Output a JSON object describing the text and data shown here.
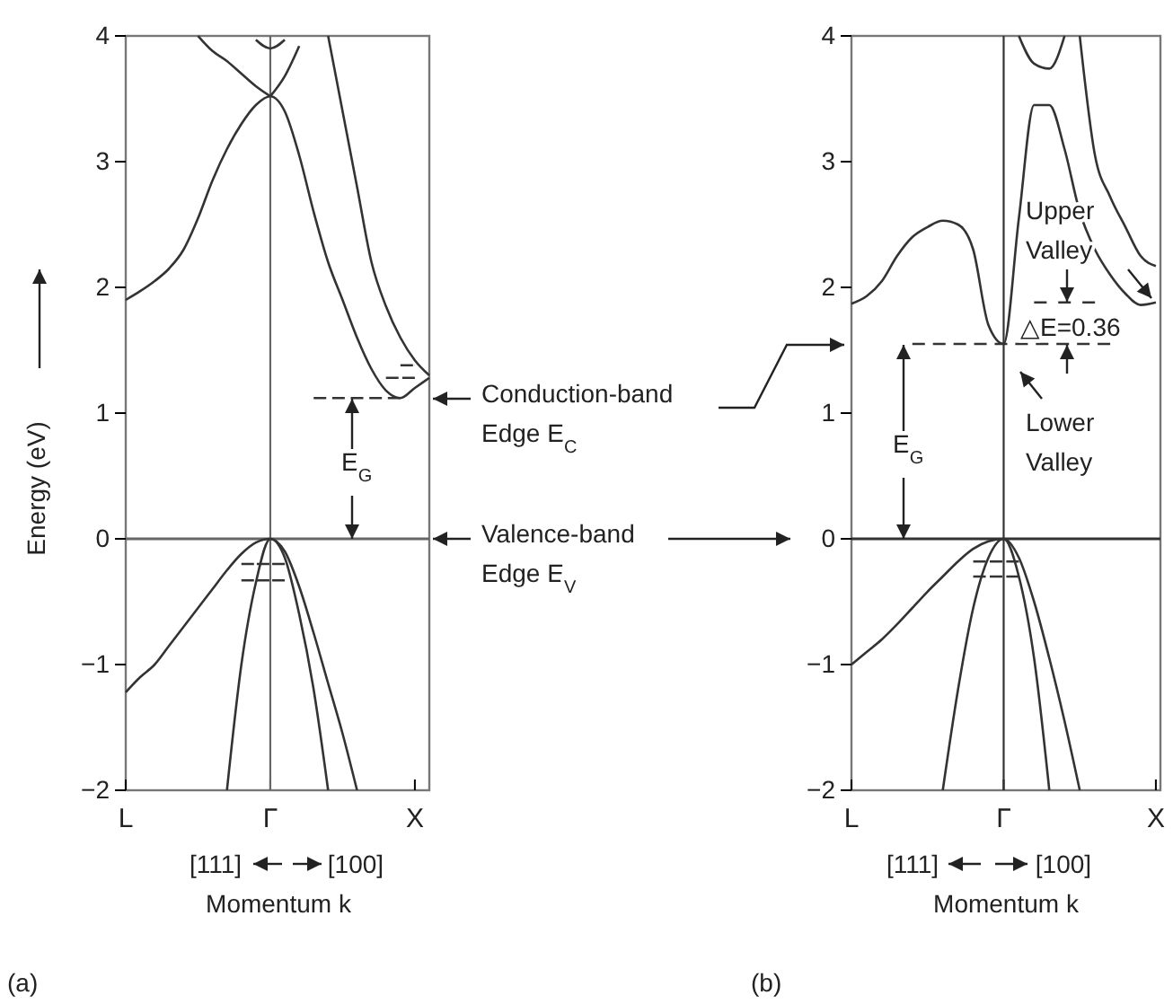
{
  "chart_data": [
    {
      "type": "line",
      "xlabel": "Momentum k",
      "ylabel": "Energy (eV)",
      "ylim": [
        -2,
        4
      ],
      "yticks": [
        -2,
        -1,
        0,
        1,
        2,
        3,
        4
      ],
      "categories": [
        "L",
        null,
        null,
        null,
        null,
        null,
        null,
        null,
        null,
        null,
        "Γ",
        null,
        null,
        null,
        null,
        null,
        null,
        null,
        null,
        null,
        "X",
        null
      ],
      "line_style": "solid",
      "ref_lines": [
        {
          "axis": "y",
          "value": 0,
          "color": "#666666"
        },
        {
          "axis": "x",
          "value": "Γ",
          "color": "#666666"
        }
      ],
      "annotations": [
        "E$_{G}$",
        "Conduction-band Edge E$_{C}$",
        "Valence-band Edge E$_{V}$",
        "[111]",
        "[100]",
        "(a)"
      ],
      "series": [
        {
          "color": "#333333",
          "values": [
            1.9,
            1.97,
            2.05,
            2.15,
            2.3,
            2.55,
            2.85,
            3.1,
            3.3,
            3.45,
            3.52,
            3.4,
            3.05,
            2.6,
            2.2,
            1.9,
            1.6,
            1.35,
            1.18,
            1.12,
            1.2,
            1.28
          ]
        },
        {
          "color": "#333333",
          "values": [
            null,
            null,
            null,
            null,
            null,
            null,
            null,
            null,
            null,
            null,
            null,
            null,
            null,
            null,
            4,
            3.4,
            2.8,
            2.2,
            1.85,
            1.6,
            1.42,
            1.3
          ]
        },
        {
          "color": "#333333",
          "values": [
            null,
            null,
            null,
            null,
            null,
            4,
            3.88,
            3.8,
            3.7,
            3.6,
            3.52,
            null,
            null,
            null,
            null,
            null,
            null,
            null,
            null,
            null,
            null,
            null
          ]
        },
        {
          "color": "#333333",
          "values": [
            null,
            null,
            null,
            null,
            null,
            null,
            null,
            null,
            null,
            null,
            3.52,
            3.68,
            3.92,
            null,
            null,
            null,
            null,
            null,
            null,
            null,
            null,
            null
          ]
        },
        {
          "color": "#333333",
          "values": [
            null,
            null,
            null,
            null,
            null,
            null,
            null,
            null,
            null,
            3.97,
            3.9,
            3.97,
            null,
            null,
            null,
            null,
            null,
            null,
            null,
            null,
            null,
            null
          ]
        },
        {
          "color": "#333333",
          "values": [
            -1.22,
            -1.1,
            -1.0,
            -0.85,
            -0.7,
            -0.55,
            -0.4,
            -0.25,
            -0.12,
            -0.03,
            0,
            -0.1,
            -0.38,
            -0.75,
            -1.15,
            -1.55,
            -2,
            null,
            null,
            null,
            null,
            null
          ]
        },
        {
          "color": "#333333",
          "values": [
            null,
            null,
            null,
            null,
            null,
            null,
            null,
            -2,
            -1.0,
            -0.35,
            0,
            -0.15,
            -0.6,
            -1.2,
            -2,
            null,
            null,
            null,
            null,
            null,
            null,
            null
          ]
        },
        {
          "color": "#333333",
          "line_style": "dashed",
          "values": [
            null,
            null,
            null,
            null,
            null,
            null,
            null,
            null,
            -0.2,
            -0.2,
            -0.2,
            -0.2,
            null,
            null,
            null,
            null,
            null,
            null,
            null,
            null,
            null,
            null
          ]
        },
        {
          "color": "#333333",
          "line_style": "dashed",
          "values": [
            null,
            null,
            null,
            null,
            null,
            null,
            null,
            null,
            -0.33,
            -0.33,
            -0.33,
            -0.33,
            null,
            null,
            null,
            null,
            null,
            null,
            null,
            null,
            null,
            null
          ]
        },
        {
          "color": "#333333",
          "line_style": "dashed",
          "values": [
            null,
            null,
            null,
            null,
            null,
            null,
            null,
            null,
            null,
            null,
            null,
            null,
            null,
            1.12,
            1.12,
            1.12,
            1.12,
            1.12,
            1.12,
            1.12,
            null,
            null
          ]
        },
        {
          "color": "#333333",
          "line_style": "dashed",
          "values": [
            null,
            null,
            null,
            null,
            null,
            null,
            null,
            null,
            null,
            null,
            null,
            null,
            null,
            null,
            null,
            null,
            null,
            null,
            null,
            1.38,
            1.38,
            null
          ]
        },
        {
          "color": "#333333",
          "line_style": "dashed",
          "values": [
            null,
            null,
            null,
            null,
            null,
            null,
            null,
            null,
            null,
            null,
            null,
            null,
            null,
            null,
            null,
            null,
            null,
            null,
            1.28,
            1.28,
            1.28,
            null
          ]
        }
      ]
    },
    {
      "type": "line",
      "xlabel": "Momentum k",
      "ylim": [
        -2,
        4
      ],
      "yticks": [
        -2,
        -1,
        0,
        1,
        2,
        3,
        4
      ],
      "categories": [
        "L",
        null,
        null,
        null,
        null,
        null,
        null,
        null,
        null,
        null,
        "Γ",
        null,
        null,
        null,
        null,
        null,
        null,
        null,
        null,
        null,
        "X"
      ],
      "line_style": "solid",
      "ref_lines": [
        {
          "axis": "y",
          "value": 0,
          "color": "#333333"
        },
        {
          "axis": "x",
          "value": "Γ",
          "color": "#333333"
        }
      ],
      "annotations": [
        "E$_{G}$",
        "Upper Valley",
        "△E=0.36",
        "Lower Valley",
        "[111]",
        "[100]",
        "(b)"
      ],
      "series": [
        {
          "color": "#333333",
          "values": [
            1.87,
            1.93,
            2.05,
            2.25,
            2.4,
            2.48,
            2.53,
            2.5,
            2.3,
            1.7,
            1.55,
            2.55,
            3.45,
            3.45,
            3.1,
            2.6,
            2.3,
            2.1,
            1.95,
            1.86,
            1.88
          ]
        },
        {
          "color": "#333333",
          "values": [
            null,
            null,
            null,
            null,
            null,
            null,
            null,
            null,
            null,
            null,
            null,
            null,
            null,
            null,
            null,
            4,
            3.05,
            2.72,
            2.48,
            2.25,
            2.17
          ]
        },
        {
          "color": "#333333",
          "values": [
            null,
            null,
            null,
            null,
            null,
            null,
            null,
            null,
            null,
            null,
            null,
            4,
            3.78,
            3.74,
            4,
            null,
            null,
            null,
            null,
            null,
            null
          ]
        },
        {
          "color": "#333333",
          "values": [
            -1.0,
            -0.9,
            -0.8,
            -0.68,
            -0.55,
            -0.42,
            -0.3,
            -0.18,
            -0.08,
            -0.02,
            0,
            -0.15,
            -0.5,
            -0.95,
            -1.45,
            -2,
            null,
            null,
            null,
            null,
            null
          ]
        },
        {
          "color": "#333333",
          "values": [
            null,
            null,
            null,
            null,
            null,
            null,
            -2,
            -1.2,
            -0.55,
            -0.15,
            0,
            -0.3,
            -0.95,
            -2,
            null,
            null,
            null,
            null,
            null,
            null,
            null
          ]
        },
        {
          "color": "#333333",
          "line_style": "dashed",
          "values": [
            null,
            null,
            null,
            null,
            null,
            null,
            null,
            null,
            -0.18,
            -0.18,
            -0.18,
            -0.18,
            null,
            null,
            null,
            null,
            null,
            null,
            null,
            null,
            null
          ]
        },
        {
          "color": "#333333",
          "line_style": "dashed",
          "values": [
            null,
            null,
            null,
            null,
            null,
            null,
            null,
            null,
            -0.3,
            -0.3,
            -0.3,
            -0.3,
            null,
            null,
            null,
            null,
            null,
            null,
            null,
            null,
            null
          ]
        },
        {
          "color": "#333333",
          "line_style": "dashed",
          "values": [
            null,
            null,
            null,
            null,
            1.55,
            1.55,
            1.55,
            1.55,
            1.55,
            1.55,
            1.55,
            1.55,
            1.55,
            1.55,
            1.55,
            1.55,
            1.55,
            1.55,
            null,
            null,
            null
          ]
        },
        {
          "color": "#333333",
          "line_style": "dashed",
          "values": [
            null,
            null,
            null,
            null,
            null,
            null,
            null,
            null,
            null,
            null,
            null,
            null,
            1.88,
            1.88,
            1.88,
            1.88,
            1.88,
            null,
            null,
            null,
            null
          ]
        }
      ]
    }
  ]
}
